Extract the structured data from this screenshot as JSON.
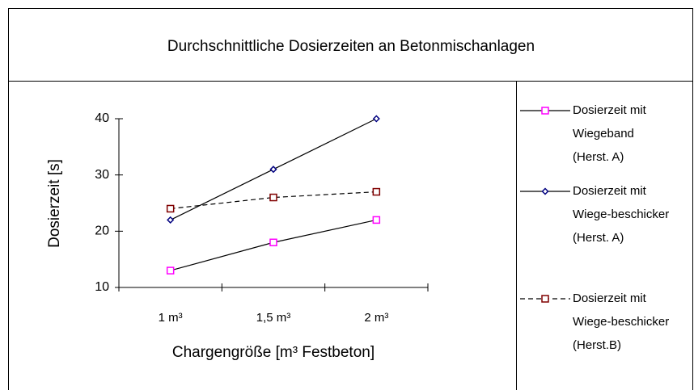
{
  "chart_data": {
    "type": "line",
    "title": "Durchschnittliche Dosierzeiten an Betonmischanlagen",
    "x_label": "Chargengröße [m³ Festbeton]",
    "y_label": "Dosierzeit [s]",
    "categories": [
      "1 m³",
      "1,5 m³",
      "2 m³"
    ],
    "series": [
      {
        "name": "Dosierzeit mit Wiegeband (Herst. A)",
        "color": "#ff00ff",
        "marker": "square",
        "line_style": "solid",
        "values": [
          13,
          18,
          22
        ]
      },
      {
        "name": "Dosierzeit mit Wiege-beschicker (Herst. A)",
        "color": "#000080",
        "marker": "diamond",
        "line_style": "solid",
        "values": [
          22,
          31,
          40
        ]
      },
      {
        "name": "Dosierzeit mit Wiege-beschicker (Herst.B)",
        "color": "#800000",
        "marker": "square",
        "line_style": "dashed",
        "values": [
          24,
          26,
          27
        ]
      }
    ],
    "ylim": [
      10,
      40
    ],
    "yticks": [
      10,
      20,
      30,
      40
    ],
    "grid": false,
    "legend": "right"
  }
}
